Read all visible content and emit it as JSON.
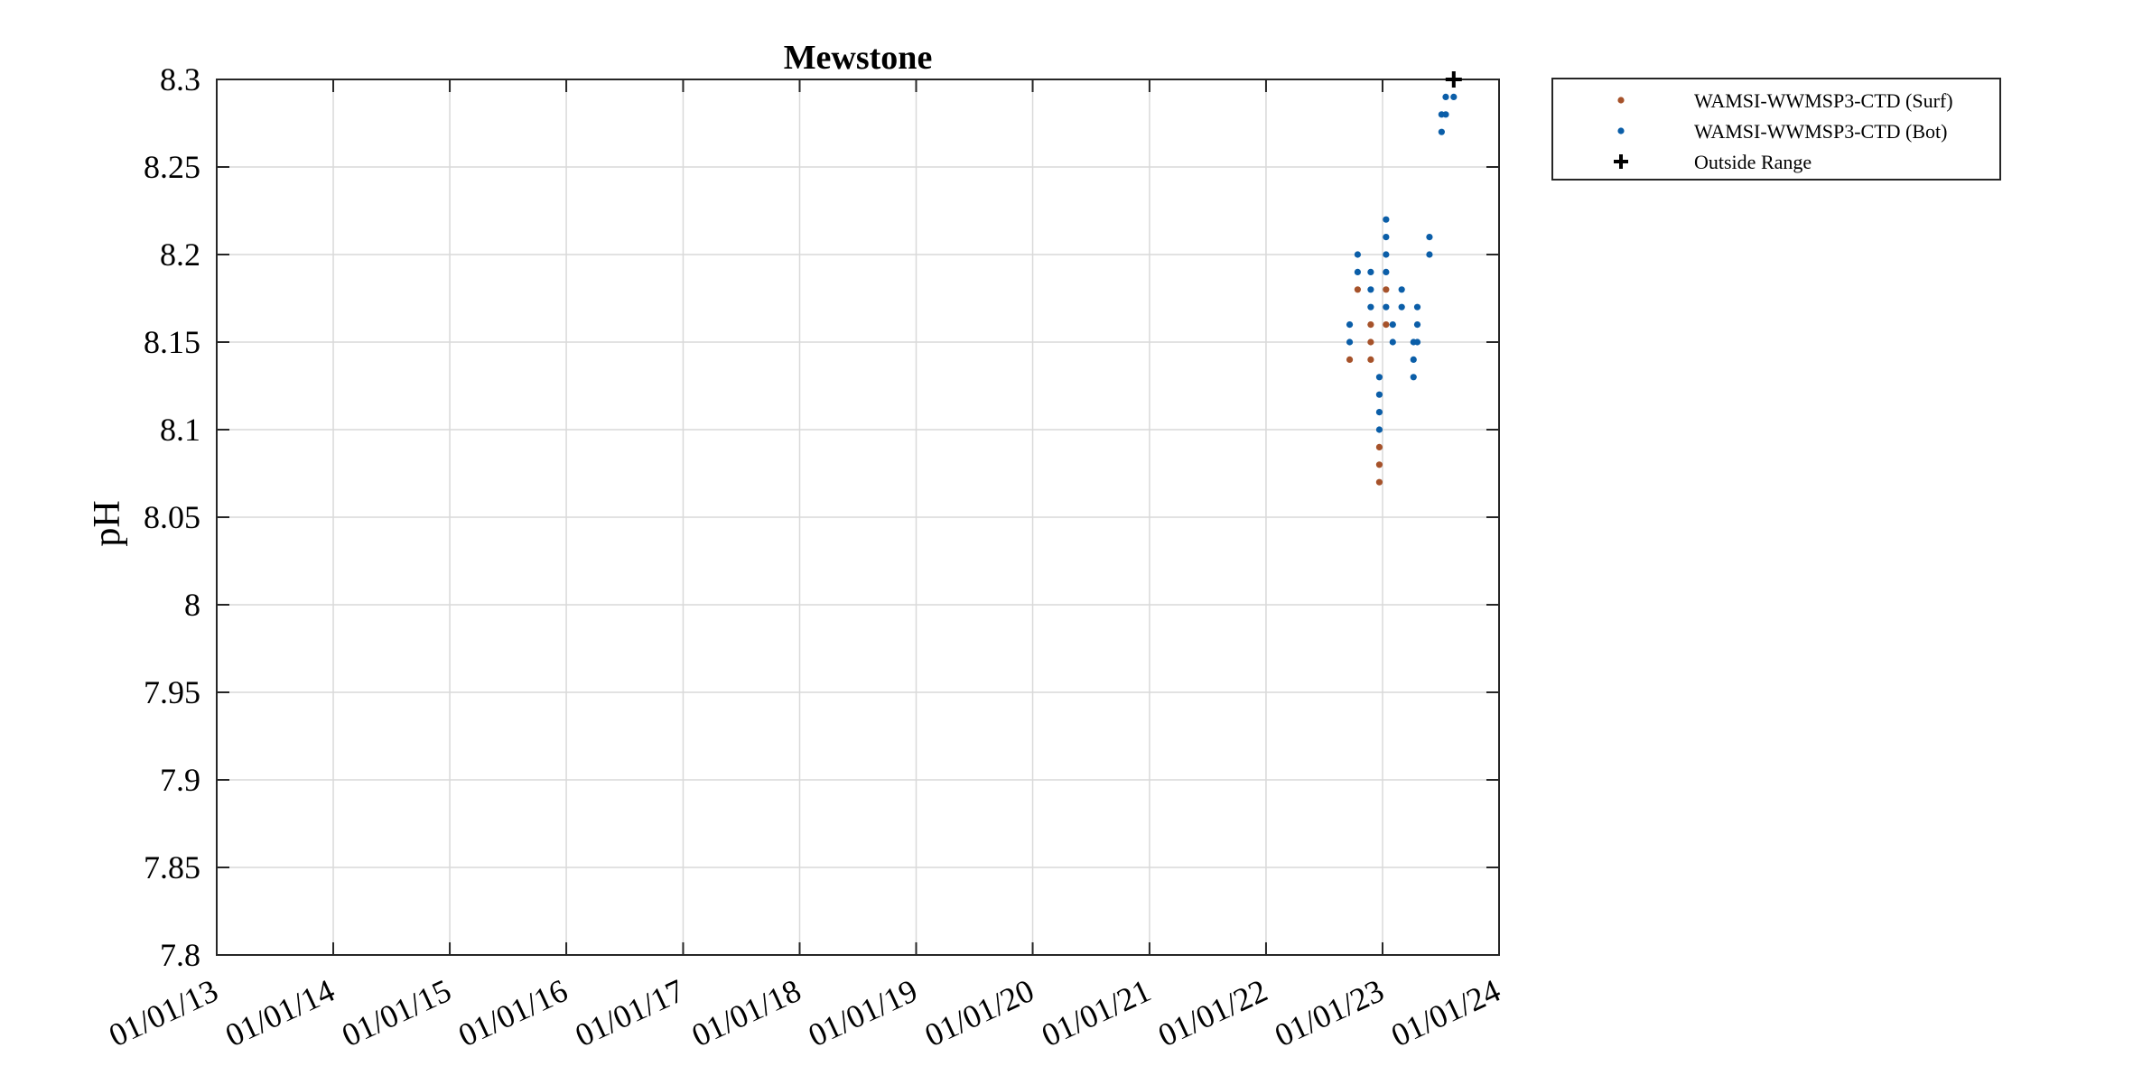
{
  "chart_data": {
    "type": "scatter",
    "title": "Mewstone",
    "xlabel": "",
    "ylabel": "pH",
    "ylim": [
      7.8,
      8.3
    ],
    "xlim": [
      "2013-01-01",
      "2024-01-01"
    ],
    "x_tick_labels": [
      "01/01/13",
      "01/01/14",
      "01/01/15",
      "01/01/16",
      "01/01/17",
      "01/01/18",
      "01/01/19",
      "01/01/20",
      "01/01/21",
      "01/01/22",
      "01/01/23",
      "01/01/24"
    ],
    "y_tick_labels": [
      "7.8",
      "7.85",
      "7.9",
      "7.95",
      "8",
      "8.05",
      "8.1",
      "8.15",
      "8.2",
      "8.25",
      "8.3"
    ],
    "grid": true,
    "legend_position": "outside-top-right",
    "series": [
      {
        "name": "WAMSI-WWMSP3-CTD (Surf)",
        "color": "#a6522a",
        "marker": "dot",
        "points": [
          {
            "x": "2022-09-20",
            "y": 8.14
          },
          {
            "x": "2022-10-15",
            "y": 8.18
          },
          {
            "x": "2022-11-25",
            "y": 8.14
          },
          {
            "x": "2022-11-25",
            "y": 8.15
          },
          {
            "x": "2022-11-25",
            "y": 8.16
          },
          {
            "x": "2022-12-22",
            "y": 8.07
          },
          {
            "x": "2022-12-22",
            "y": 8.08
          },
          {
            "x": "2022-12-22",
            "y": 8.09
          },
          {
            "x": "2023-01-12",
            "y": 8.16
          },
          {
            "x": "2023-01-12",
            "y": 8.18
          }
        ]
      },
      {
        "name": "WAMSI-WWMSP3-CTD (Bot)",
        "color": "#0b5ea8",
        "marker": "dot",
        "points": [
          {
            "x": "2022-09-20",
            "y": 8.15
          },
          {
            "x": "2022-09-20",
            "y": 8.16
          },
          {
            "x": "2022-10-15",
            "y": 8.19
          },
          {
            "x": "2022-10-15",
            "y": 8.2
          },
          {
            "x": "2022-11-25",
            "y": 8.17
          },
          {
            "x": "2022-11-25",
            "y": 8.18
          },
          {
            "x": "2022-11-25",
            "y": 8.19
          },
          {
            "x": "2022-12-22",
            "y": 8.1
          },
          {
            "x": "2022-12-22",
            "y": 8.11
          },
          {
            "x": "2022-12-22",
            "y": 8.12
          },
          {
            "x": "2022-12-22",
            "y": 8.13
          },
          {
            "x": "2023-01-12",
            "y": 8.17
          },
          {
            "x": "2023-01-12",
            "y": 8.19
          },
          {
            "x": "2023-01-12",
            "y": 8.2
          },
          {
            "x": "2023-01-12",
            "y": 8.21
          },
          {
            "x": "2023-01-12",
            "y": 8.22
          },
          {
            "x": "2023-02-02",
            "y": 8.15
          },
          {
            "x": "2023-02-02",
            "y": 8.16
          },
          {
            "x": "2023-03-02",
            "y": 8.17
          },
          {
            "x": "2023-03-02",
            "y": 8.18
          },
          {
            "x": "2023-04-08",
            "y": 8.13
          },
          {
            "x": "2023-04-08",
            "y": 8.14
          },
          {
            "x": "2023-04-08",
            "y": 8.15
          },
          {
            "x": "2023-04-20",
            "y": 8.15
          },
          {
            "x": "2023-04-20",
            "y": 8.16
          },
          {
            "x": "2023-04-20",
            "y": 8.17
          },
          {
            "x": "2023-05-28",
            "y": 8.2
          },
          {
            "x": "2023-05-28",
            "y": 8.21
          },
          {
            "x": "2023-07-05",
            "y": 8.27
          },
          {
            "x": "2023-07-05",
            "y": 8.28
          },
          {
            "x": "2023-07-18",
            "y": 8.28
          },
          {
            "x": "2023-07-18",
            "y": 8.29
          },
          {
            "x": "2023-08-12",
            "y": 8.29
          }
        ]
      },
      {
        "name": "Outside Range",
        "color": "#000000",
        "marker": "plus",
        "points": [
          {
            "x": "2023-08-12",
            "y": 8.3
          }
        ]
      }
    ]
  }
}
